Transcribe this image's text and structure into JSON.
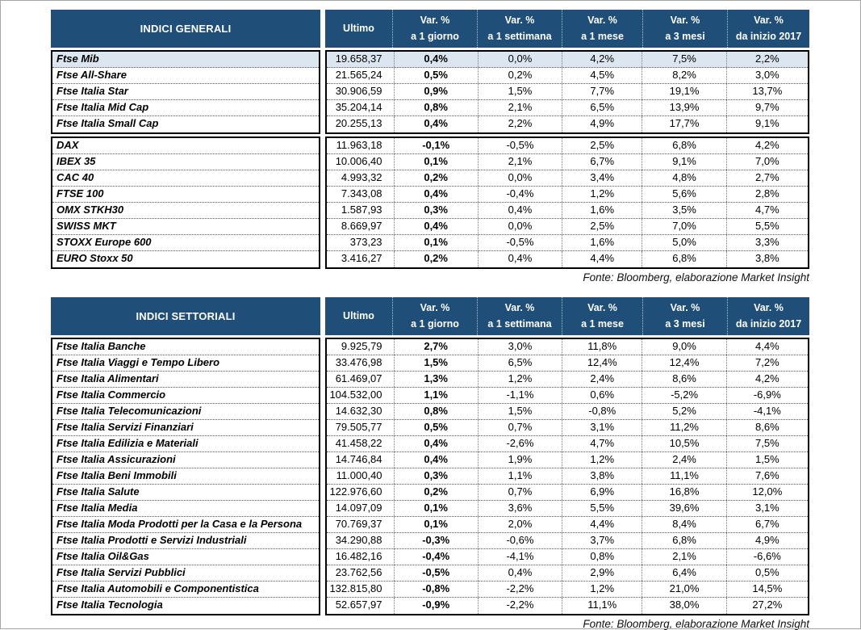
{
  "colors": {
    "header_bg": "#1F4E79",
    "header_text": "#FFFFFF",
    "highlight_row": "#DCE6F1",
    "block_border": "#000000"
  },
  "columns": [
    {
      "key": "ultimo",
      "line1": "Ultimo",
      "line2": ""
    },
    {
      "key": "var-1-giorno",
      "line1": "Var. %",
      "line2": "a 1 giorno"
    },
    {
      "key": "var-1-settimana",
      "line1": "Var. %",
      "line2": "a 1 settimana"
    },
    {
      "key": "var-1-mese",
      "line1": "Var. %",
      "line2": "a 1 mese"
    },
    {
      "key": "var-3-mesi",
      "line1": "Var. %",
      "line2": "a 3 mesi"
    },
    {
      "key": "var-da-inizio-2017",
      "line1": "Var. %",
      "line2": "da inizio 2017"
    }
  ],
  "tables": [
    {
      "title": "INDICI GENERALI",
      "source": "Fonte: Bloomberg, elaborazione Market Insight",
      "groups": [
        {
          "rows": [
            {
              "name": "Ftse Mib",
              "highlight": true,
              "values": [
                "19.658,37",
                "0,4%",
                "0,0%",
                "4,2%",
                "7,5%",
                "2,2%"
              ]
            },
            {
              "name": "Ftse All-Share",
              "highlight": false,
              "values": [
                "21.565,24",
                "0,5%",
                "0,2%",
                "4,5%",
                "8,2%",
                "3,0%"
              ]
            },
            {
              "name": "Ftse Italia Star",
              "highlight": false,
              "values": [
                "30.906,59",
                "0,9%",
                "1,5%",
                "7,7%",
                "19,1%",
                "13,7%"
              ]
            },
            {
              "name": "Ftse Italia Mid Cap",
              "highlight": false,
              "values": [
                "35.204,14",
                "0,8%",
                "2,1%",
                "6,5%",
                "13,9%",
                "9,7%"
              ]
            },
            {
              "name": "Ftse Italia Small Cap",
              "highlight": false,
              "values": [
                "20.255,13",
                "0,4%",
                "2,2%",
                "4,9%",
                "17,7%",
                "9,1%"
              ]
            }
          ]
        },
        {
          "rows": [
            {
              "name": "DAX",
              "highlight": false,
              "values": [
                "11.963,18",
                "-0,1%",
                "-0,5%",
                "2,5%",
                "6,8%",
                "4,2%"
              ]
            },
            {
              "name": "IBEX 35",
              "highlight": false,
              "values": [
                "10.006,40",
                "0,1%",
                "2,1%",
                "6,7%",
                "9,1%",
                "7,0%"
              ]
            },
            {
              "name": "CAC 40",
              "highlight": false,
              "values": [
                "4.993,32",
                "0,2%",
                "0,0%",
                "3,4%",
                "4,8%",
                "2,7%"
              ]
            },
            {
              "name": "FTSE 100",
              "highlight": false,
              "values": [
                "7.343,08",
                "0,4%",
                "-0,4%",
                "1,2%",
                "5,6%",
                "2,8%"
              ]
            },
            {
              "name": "OMX STKH30",
              "highlight": false,
              "values": [
                "1.587,93",
                "0,3%",
                "0,4%",
                "1,6%",
                "3,5%",
                "4,7%"
              ]
            },
            {
              "name": "SWISS MKT",
              "highlight": false,
              "values": [
                "8.669,97",
                "0,4%",
                "0,0%",
                "2,5%",
                "7,0%",
                "5,5%"
              ]
            },
            {
              "name": "STOXX Europe 600",
              "highlight": false,
              "values": [
                "373,23",
                "0,1%",
                "-0,5%",
                "1,6%",
                "5,0%",
                "3,3%"
              ]
            },
            {
              "name": "EURO Stoxx 50",
              "highlight": false,
              "values": [
                "3.416,27",
                "0,2%",
                "0,4%",
                "4,4%",
                "6,8%",
                "3,8%"
              ]
            }
          ]
        }
      ]
    },
    {
      "title": "INDICI SETTORIALI",
      "source": "Fonte: Bloomberg, elaborazione Market Insight",
      "groups": [
        {
          "rows": [
            {
              "name": "Ftse Italia Banche",
              "highlight": false,
              "values": [
                "9.925,79",
                "2,7%",
                "3,0%",
                "11,8%",
                "9,0%",
                "4,4%"
              ]
            },
            {
              "name": "Ftse Italia Viaggi e Tempo Libero",
              "highlight": false,
              "values": [
                "33.476,98",
                "1,5%",
                "6,5%",
                "12,4%",
                "12,4%",
                "7,2%"
              ]
            },
            {
              "name": "Ftse Italia Alimentari",
              "highlight": false,
              "values": [
                "61.469,07",
                "1,3%",
                "1,2%",
                "2,4%",
                "8,6%",
                "4,2%"
              ]
            },
            {
              "name": "Ftse Italia Commercio",
              "highlight": false,
              "values": [
                "104.532,00",
                "1,1%",
                "-1,1%",
                "0,6%",
                "-5,2%",
                "-6,9%"
              ]
            },
            {
              "name": "Ftse Italia Telecomunicazioni",
              "highlight": false,
              "values": [
                "14.632,30",
                "0,8%",
                "1,5%",
                "-0,8%",
                "5,2%",
                "-4,1%"
              ]
            },
            {
              "name": "Ftse Italia Servizi Finanziari",
              "highlight": false,
              "values": [
                "79.505,77",
                "0,5%",
                "0,7%",
                "3,1%",
                "11,2%",
                "8,6%"
              ]
            },
            {
              "name": "Ftse Italia Edilizia e Materiali",
              "highlight": false,
              "values": [
                "41.458,22",
                "0,4%",
                "-2,6%",
                "4,7%",
                "10,5%",
                "7,5%"
              ]
            },
            {
              "name": "Ftse Italia Assicurazioni",
              "highlight": false,
              "values": [
                "14.746,84",
                "0,4%",
                "1,9%",
                "1,2%",
                "2,4%",
                "1,5%"
              ]
            },
            {
              "name": "Ftse Italia Beni Immobili",
              "highlight": false,
              "values": [
                "11.000,40",
                "0,3%",
                "1,1%",
                "3,8%",
                "11,1%",
                "7,6%"
              ]
            },
            {
              "name": "Ftse Italia Salute",
              "highlight": false,
              "values": [
                "122.976,60",
                "0,2%",
                "0,7%",
                "6,9%",
                "16,8%",
                "12,0%"
              ]
            },
            {
              "name": "Ftse Italia Media",
              "highlight": false,
              "values": [
                "14.097,09",
                "0,1%",
                "3,6%",
                "5,5%",
                "39,6%",
                "3,1%"
              ]
            },
            {
              "name": "Ftse Italia Moda Prodotti per la Casa e la Persona",
              "highlight": false,
              "values": [
                "70.769,37",
                "0,1%",
                "2,0%",
                "4,4%",
                "8,4%",
                "6,7%"
              ]
            },
            {
              "name": "Ftse Italia Prodotti e Servizi Industriali",
              "highlight": false,
              "values": [
                "34.290,88",
                "-0,3%",
                "-0,6%",
                "3,7%",
                "6,8%",
                "4,9%"
              ]
            },
            {
              "name": "Ftse Italia Oil&Gas",
              "highlight": false,
              "values": [
                "16.482,16",
                "-0,4%",
                "-4,1%",
                "0,8%",
                "2,1%",
                "-6,6%"
              ]
            },
            {
              "name": "Ftse Italia Servizi Pubblici",
              "highlight": false,
              "values": [
                "23.762,56",
                "-0,5%",
                "0,4%",
                "2,9%",
                "6,4%",
                "0,5%"
              ]
            },
            {
              "name": "Ftse Italia Automobili e Componentistica",
              "highlight": false,
              "values": [
                "132.815,80",
                "-0,8%",
                "-2,2%",
                "1,2%",
                "21,0%",
                "14,5%"
              ]
            },
            {
              "name": "Ftse Italia Tecnologia",
              "highlight": false,
              "values": [
                "52.657,97",
                "-0,9%",
                "-2,2%",
                "11,1%",
                "38,0%",
                "27,2%"
              ]
            }
          ]
        }
      ]
    }
  ]
}
